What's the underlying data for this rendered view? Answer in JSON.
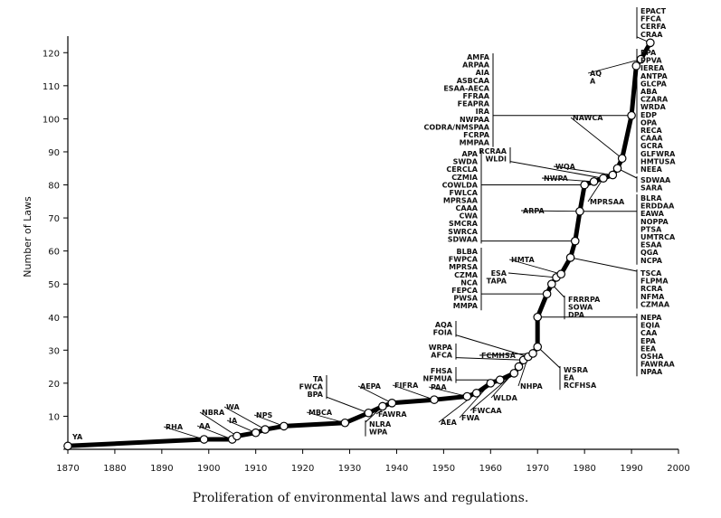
{
  "caption": "Proliferation of environmental laws and regulations.",
  "chart_data": {
    "type": "line",
    "ylabel": "Number of Laws",
    "xlabel": "",
    "xlim": [
      1870,
      2000
    ],
    "ylim": [
      0,
      125
    ],
    "xticks": [
      1870,
      1880,
      1890,
      1900,
      1910,
      1920,
      1930,
      1940,
      1950,
      1960,
      1970,
      1980,
      1990,
      2000
    ],
    "yticks": [
      0,
      10,
      20,
      30,
      40,
      50,
      60,
      70,
      80,
      90,
      100,
      110,
      120
    ],
    "series": [
      {
        "points": [
          {
            "x": 1870,
            "y": 1
          },
          {
            "x": 1899,
            "y": 3
          },
          {
            "x": 1905,
            "y": 3
          },
          {
            "x": 1906,
            "y": 4
          },
          {
            "x": 1910,
            "y": 5
          },
          {
            "x": 1912,
            "y": 6
          },
          {
            "x": 1916,
            "y": 7
          },
          {
            "x": 1929,
            "y": 8
          },
          {
            "x": 1934,
            "y": 11
          },
          {
            "x": 1937,
            "y": 13
          },
          {
            "x": 1939,
            "y": 14
          },
          {
            "x": 1948,
            "y": 15
          },
          {
            "x": 1955,
            "y": 16
          },
          {
            "x": 1957,
            "y": 17
          },
          {
            "x": 1960,
            "y": 20
          },
          {
            "x": 1962,
            "y": 21
          },
          {
            "x": 1965,
            "y": 23
          },
          {
            "x": 1966,
            "y": 25
          },
          {
            "x": 1967,
            "y": 27
          },
          {
            "x": 1968,
            "y": 28
          },
          {
            "x": 1969,
            "y": 29
          },
          {
            "x": 1970,
            "y": 31
          },
          {
            "x": 1970,
            "y": 40
          },
          {
            "x": 1972,
            "y": 47
          },
          {
            "x": 1973,
            "y": 50
          },
          {
            "x": 1974,
            "y": 52
          },
          {
            "x": 1975,
            "y": 53
          },
          {
            "x": 1977,
            "y": 58
          },
          {
            "x": 1978,
            "y": 63
          },
          {
            "x": 1979,
            "y": 72
          },
          {
            "x": 1980,
            "y": 80
          },
          {
            "x": 1982,
            "y": 81
          },
          {
            "x": 1984,
            "y": 82
          },
          {
            "x": 1986,
            "y": 83
          },
          {
            "x": 1987,
            "y": 85
          },
          {
            "x": 1988,
            "y": 88
          },
          {
            "x": 1990,
            "y": 101
          },
          {
            "x": 1991,
            "y": 116
          },
          {
            "x": 1992,
            "y": 118
          },
          {
            "x": 1994,
            "y": 123
          }
        ]
      }
    ],
    "annotations": [
      {
        "x": 1870,
        "y": 1,
        "lines": [
          "YA"
        ]
      },
      {
        "x": 1899,
        "y": 3,
        "lines": [
          "RHA"
        ]
      },
      {
        "x": 1905,
        "y": 3,
        "lines": [
          "AA"
        ]
      },
      {
        "x": 1906,
        "y": 4,
        "lines": [
          "NBRA"
        ]
      },
      {
        "x": 1910,
        "y": 5,
        "lines": [
          "IA"
        ]
      },
      {
        "x": 1912,
        "y": 6,
        "lines": [
          "WA"
        ]
      },
      {
        "x": 1916,
        "y": 7,
        "lines": [
          "NPS"
        ]
      },
      {
        "x": 1929,
        "y": 8,
        "lines": [
          "MBCA"
        ]
      },
      {
        "x": 1934,
        "y": 11,
        "lines": [
          "TA",
          "FWCA",
          "BPA"
        ]
      },
      {
        "x": 1937,
        "y": 13,
        "lines": [
          "NLRA",
          "WPA"
        ]
      },
      {
        "x": 1939,
        "y": 14,
        "lines": [
          "AEPA"
        ]
      },
      {
        "x": 1939,
        "y": 14,
        "lines": [
          "FAWRA"
        ]
      },
      {
        "x": 1948,
        "y": 15,
        "lines": [
          "FIFRA"
        ]
      },
      {
        "x": 1955,
        "y": 16,
        "lines": [
          "PAA"
        ]
      },
      {
        "x": 1957,
        "y": 17,
        "lines": [
          "AEA"
        ]
      },
      {
        "x": 1960,
        "y": 20,
        "lines": [
          "FWA"
        ]
      },
      {
        "x": 1962,
        "y": 21,
        "lines": [
          "FHSA",
          "NFMUA"
        ]
      },
      {
        "x": 1965,
        "y": 23,
        "lines": [
          "FWCAA"
        ]
      },
      {
        "x": 1966,
        "y": 25,
        "lines": [
          "WLDA"
        ]
      },
      {
        "x": 1967,
        "y": 27,
        "lines": [
          "WRPA",
          "AFCA"
        ]
      },
      {
        "x": 1968,
        "y": 28,
        "lines": [
          "AQA",
          "FOIA"
        ]
      },
      {
        "x": 1968,
        "y": 28,
        "lines": [
          "NHPA"
        ]
      },
      {
        "x": 1969,
        "y": 29,
        "lines": [
          "FCMHSA"
        ]
      },
      {
        "x": 1970,
        "y": 31,
        "lines": [
          "WSRA",
          "EA",
          "RCFHSA"
        ]
      },
      {
        "x": 1970,
        "y": 40,
        "lines": [
          "NEPA",
          "EQIA",
          "CAA",
          "EPA",
          "EEA",
          "OSHA",
          "FAWRAA",
          "NPAA"
        ]
      },
      {
        "x": 1972,
        "y": 47,
        "lines": [
          "BLBA",
          "FWPCA",
          "MPRSA",
          "CZMA",
          "NCA",
          "FEPCA",
          "PWSA",
          "MMPA"
        ]
      },
      {
        "x": 1973,
        "y": 50,
        "lines": [
          "FRRRPA",
          "SOWA",
          "DPA"
        ]
      },
      {
        "x": 1974,
        "y": 52,
        "lines": [
          "ESA",
          "TAPA"
        ]
      },
      {
        "x": 1975,
        "y": 53,
        "lines": [
          "HMTA"
        ]
      },
      {
        "x": 1977,
        "y": 58,
        "lines": [
          "TSCA",
          "FLPMA",
          "RCRA",
          "NFMA",
          "CZMAA"
        ]
      },
      {
        "x": 1978,
        "y": 63,
        "lines": [
          "CAAA",
          "CWA",
          "SMCRA",
          "SWRCA",
          "SDWAA"
        ]
      },
      {
        "x": 1979,
        "y": 72,
        "lines": [
          "ARPA"
        ]
      },
      {
        "x": 1979,
        "y": 72,
        "lines": [
          "BLRA",
          "ERDDAA",
          "EAWA",
          "NOPPA",
          "PTSA",
          "UMTRCA",
          "ESAA",
          "QGA",
          "NCPA"
        ]
      },
      {
        "x": 1980,
        "y": 80,
        "lines": [
          "APA",
          "SWDA",
          "CERCLA",
          "CZMIA",
          "COWLDA",
          "FWLCA",
          "MPRSAA"
        ]
      },
      {
        "x": 1982,
        "y": 81,
        "lines": [
          "NWPA"
        ]
      },
      {
        "x": 1984,
        "y": 82,
        "lines": [
          "RCRAA",
          "WLDI"
        ]
      },
      {
        "x": 1984,
        "y": 82,
        "lines": [
          "MPRSAA"
        ]
      },
      {
        "x": 1986,
        "y": 83,
        "lines": [
          "WQA"
        ]
      },
      {
        "x": 1987,
        "y": 85,
        "lines": [
          "SDWAA",
          "SARA"
        ]
      },
      {
        "x": 1988,
        "y": 88,
        "lines": [
          "NAWCA"
        ]
      },
      {
        "x": 1990,
        "y": 101,
        "lines": [
          "AMFA",
          "ARPAA",
          "AIA",
          "ASBCAA",
          "ESAA-AECA",
          "FFRAA",
          "FEAPRA",
          "IRA",
          "NWPAA",
          "CODRA/NMSPAA",
          "FCRPA",
          "MMPAA"
        ]
      },
      {
        "x": 1991,
        "y": 116,
        "lines": [
          "PPA",
          "PPVA",
          "IEREA",
          "ANTPA",
          "GLCPA",
          "ABA",
          "CZARA",
          "WRDA",
          "EDP",
          "OPA",
          "RECA",
          "CAAA",
          "GCRA",
          "GLFWRA",
          "HMTUSA",
          "NEEA"
        ]
      },
      {
        "x": 1992,
        "y": 118,
        "lines": [
          "AQ",
          "A"
        ]
      },
      {
        "x": 1994,
        "y": 123,
        "lines": [
          "EPACT",
          "FFCA",
          "CERFA",
          "CRAA"
        ]
      }
    ]
  }
}
